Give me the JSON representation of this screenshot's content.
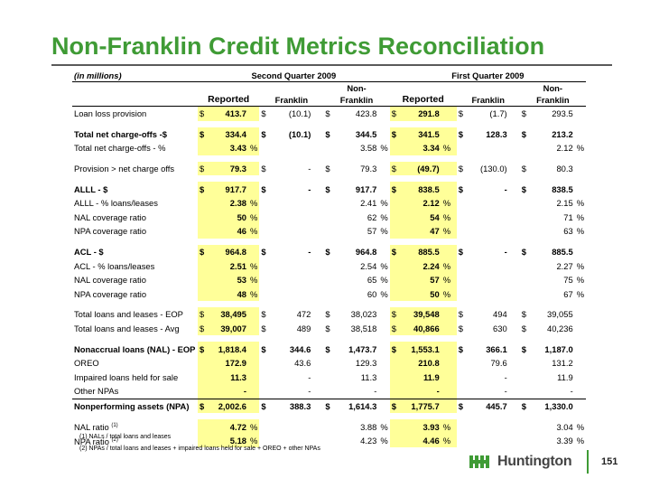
{
  "title": "Non-Franklin Credit Metrics Reconciliation",
  "units_label": "(in millions)",
  "periods": [
    "Second Quarter 2009",
    "First Quarter 2009"
  ],
  "subheaders": {
    "reported": "Reported",
    "franklin": "Franklin",
    "nonfranklin_top": "Non-",
    "nonfranklin_bottom": "Franklin"
  },
  "rows": [
    {
      "label": "Loan loss provision",
      "bold": false,
      "cells": [
        [
          "$",
          "413.7",
          ""
        ],
        [
          "$",
          "(10.1)",
          ""
        ],
        [
          "$",
          "423.8",
          ""
        ],
        [
          "$",
          "291.8",
          ""
        ],
        [
          "$",
          "(1.7)",
          ""
        ],
        [
          "$",
          "293.5",
          ""
        ]
      ]
    },
    {
      "gap": true
    },
    {
      "label": "Total net charge-offs -$",
      "bold": true,
      "cells": [
        [
          "$",
          "334.4",
          ""
        ],
        [
          "$",
          "(10.1)",
          ""
        ],
        [
          "$",
          "344.5",
          ""
        ],
        [
          "$",
          "341.5",
          ""
        ],
        [
          "$",
          "128.3",
          ""
        ],
        [
          "$",
          "213.2",
          ""
        ]
      ]
    },
    {
      "label": "Total net charge-offs - %",
      "bold": false,
      "cells": [
        [
          "",
          "3.43",
          "%"
        ],
        [
          "",
          "",
          ""
        ],
        [
          "",
          "3.58",
          "%"
        ],
        [
          "",
          "3.34",
          "%"
        ],
        [
          "",
          "",
          ""
        ],
        [
          "",
          "2.12",
          "%"
        ]
      ]
    },
    {
      "gap": true
    },
    {
      "label": "Provision > net charge offs",
      "bold": false,
      "cells": [
        [
          "$",
          "79.3",
          ""
        ],
        [
          "$",
          "-",
          ""
        ],
        [
          "$",
          "79.3",
          ""
        ],
        [
          "$",
          "(49.7)",
          ""
        ],
        [
          "$",
          "(130.0)",
          ""
        ],
        [
          "$",
          "80.3",
          ""
        ]
      ]
    },
    {
      "gap": true
    },
    {
      "label": "ALLL - $",
      "bold": true,
      "cells": [
        [
          "$",
          "917.7",
          ""
        ],
        [
          "$",
          "-",
          ""
        ],
        [
          "$",
          "917.7",
          ""
        ],
        [
          "$",
          "838.5",
          ""
        ],
        [
          "$",
          "-",
          ""
        ],
        [
          "$",
          "838.5",
          ""
        ]
      ]
    },
    {
      "label": "ALLL - % loans/leases",
      "bold": false,
      "cells": [
        [
          "",
          "2.38",
          "%"
        ],
        [
          "",
          "",
          ""
        ],
        [
          "",
          "2.41",
          "%"
        ],
        [
          "",
          "2.12",
          "%"
        ],
        [
          "",
          "",
          ""
        ],
        [
          "",
          "2.15",
          "%"
        ]
      ]
    },
    {
      "label": "NAL coverage ratio",
      "bold": false,
      "cells": [
        [
          "",
          "50",
          "%"
        ],
        [
          "",
          "",
          ""
        ],
        [
          "",
          "62",
          "%"
        ],
        [
          "",
          "54",
          "%"
        ],
        [
          "",
          "",
          ""
        ],
        [
          "",
          "71",
          "%"
        ]
      ]
    },
    {
      "label": "NPA coverage ratio",
      "bold": false,
      "cells": [
        [
          "",
          "46",
          "%"
        ],
        [
          "",
          "",
          ""
        ],
        [
          "",
          "57",
          "%"
        ],
        [
          "",
          "47",
          "%"
        ],
        [
          "",
          "",
          ""
        ],
        [
          "",
          "63",
          "%"
        ]
      ]
    },
    {
      "gap": true
    },
    {
      "label": "ACL - $",
      "bold": true,
      "cells": [
        [
          "$",
          "964.8",
          ""
        ],
        [
          "$",
          "-",
          ""
        ],
        [
          "$",
          "964.8",
          ""
        ],
        [
          "$",
          "885.5",
          ""
        ],
        [
          "$",
          "-",
          ""
        ],
        [
          "$",
          "885.5",
          ""
        ]
      ]
    },
    {
      "label": "ACL - % loans/leases",
      "bold": false,
      "cells": [
        [
          "",
          "2.51",
          "%"
        ],
        [
          "",
          "",
          ""
        ],
        [
          "",
          "2.54",
          "%"
        ],
        [
          "",
          "2.24",
          "%"
        ],
        [
          "",
          "",
          ""
        ],
        [
          "",
          "2.27",
          "%"
        ]
      ]
    },
    {
      "label": "NAL coverage ratio",
      "bold": false,
      "cells": [
        [
          "",
          "53",
          "%"
        ],
        [
          "",
          "",
          ""
        ],
        [
          "",
          "65",
          "%"
        ],
        [
          "",
          "57",
          "%"
        ],
        [
          "",
          "",
          ""
        ],
        [
          "",
          "75",
          "%"
        ]
      ]
    },
    {
      "label": "NPA coverage ratio",
      "bold": false,
      "cells": [
        [
          "",
          "48",
          "%"
        ],
        [
          "",
          "",
          ""
        ],
        [
          "",
          "60",
          "%"
        ],
        [
          "",
          "50",
          "%"
        ],
        [
          "",
          "",
          ""
        ],
        [
          "",
          "67",
          "%"
        ]
      ]
    },
    {
      "gap": true
    },
    {
      "label": "Total loans and leases - EOP",
      "bold": false,
      "cells": [
        [
          "$",
          "38,495",
          ""
        ],
        [
          "$",
          "472",
          ""
        ],
        [
          "$",
          "38,023",
          ""
        ],
        [
          "$",
          "39,548",
          ""
        ],
        [
          "$",
          "494",
          ""
        ],
        [
          "$",
          "39,055",
          ""
        ]
      ]
    },
    {
      "label": "Total loans and leases - Avg",
      "bold": false,
      "cells": [
        [
          "$",
          "39,007",
          ""
        ],
        [
          "$",
          "489",
          ""
        ],
        [
          "$",
          "38,518",
          ""
        ],
        [
          "$",
          "40,866",
          ""
        ],
        [
          "$",
          "630",
          ""
        ],
        [
          "$",
          "40,236",
          ""
        ]
      ]
    },
    {
      "gap": true
    },
    {
      "label": "Nonaccrual loans (NAL) - EOP",
      "bold": true,
      "cells": [
        [
          "$",
          "1,818.4",
          ""
        ],
        [
          "$",
          "344.6",
          ""
        ],
        [
          "$",
          "1,473.7",
          ""
        ],
        [
          "$",
          "1,553.1",
          ""
        ],
        [
          "$",
          "366.1",
          ""
        ],
        [
          "$",
          "1,187.0",
          ""
        ]
      ]
    },
    {
      "label": "OREO",
      "bold": false,
      "cells": [
        [
          "",
          "172.9",
          ""
        ],
        [
          "",
          "43.6",
          ""
        ],
        [
          "",
          "129.3",
          ""
        ],
        [
          "",
          "210.8",
          ""
        ],
        [
          "",
          "79.6",
          ""
        ],
        [
          "",
          "131.2",
          ""
        ]
      ]
    },
    {
      "label": "Impaired loans held for sale",
      "bold": false,
      "cells": [
        [
          "",
          "11.3",
          ""
        ],
        [
          "",
          "-",
          ""
        ],
        [
          "",
          "11.3",
          ""
        ],
        [
          "",
          "11.9",
          ""
        ],
        [
          "",
          "-",
          ""
        ],
        [
          "",
          "11.9",
          ""
        ]
      ]
    },
    {
      "label": "Other NPAs",
      "bold": false,
      "cells": [
        [
          "",
          "-",
          ""
        ],
        [
          "",
          "-",
          ""
        ],
        [
          "",
          "-",
          ""
        ],
        [
          "",
          "-",
          ""
        ],
        [
          "",
          "-",
          ""
        ],
        [
          "",
          "-",
          ""
        ]
      ]
    },
    {
      "label": "Nonperforming assets (NPA)",
      "bold": true,
      "total": true,
      "cells": [
        [
          "$",
          "2,002.6",
          ""
        ],
        [
          "$",
          "388.3",
          ""
        ],
        [
          "$",
          "1,614.3",
          ""
        ],
        [
          "$",
          "1,775.7",
          ""
        ],
        [
          "$",
          "445.7",
          ""
        ],
        [
          "$",
          "1,330.0",
          ""
        ]
      ]
    },
    {
      "gap": true
    },
    {
      "label": "NAL ratio",
      "sup": "(1)",
      "bold": false,
      "cells": [
        [
          "",
          "4.72",
          "%"
        ],
        [
          "",
          "",
          ""
        ],
        [
          "",
          "3.88",
          "%"
        ],
        [
          "",
          "3.93",
          "%"
        ],
        [
          "",
          "",
          ""
        ],
        [
          "",
          "3.04",
          "%"
        ]
      ]
    },
    {
      "label": "NPA ratio",
      "sup": "(2)",
      "bold": false,
      "cells": [
        [
          "",
          "5.18",
          "%"
        ],
        [
          "",
          "",
          ""
        ],
        [
          "",
          "4.23",
          "%"
        ],
        [
          "",
          "4.46",
          "%"
        ],
        [
          "",
          "",
          ""
        ],
        [
          "",
          "3.39",
          "%"
        ]
      ]
    }
  ],
  "footnotes": [
    "(1) NALs / total loans and leases",
    "(2) NPAs / total loans and leases + impaired loans held for sale + OREO + other NPAs"
  ],
  "logo_text": "Huntington",
  "page_number": "151",
  "colors": {
    "title_green": "#3f9b35",
    "highlight_yellow": "#ffff99"
  }
}
